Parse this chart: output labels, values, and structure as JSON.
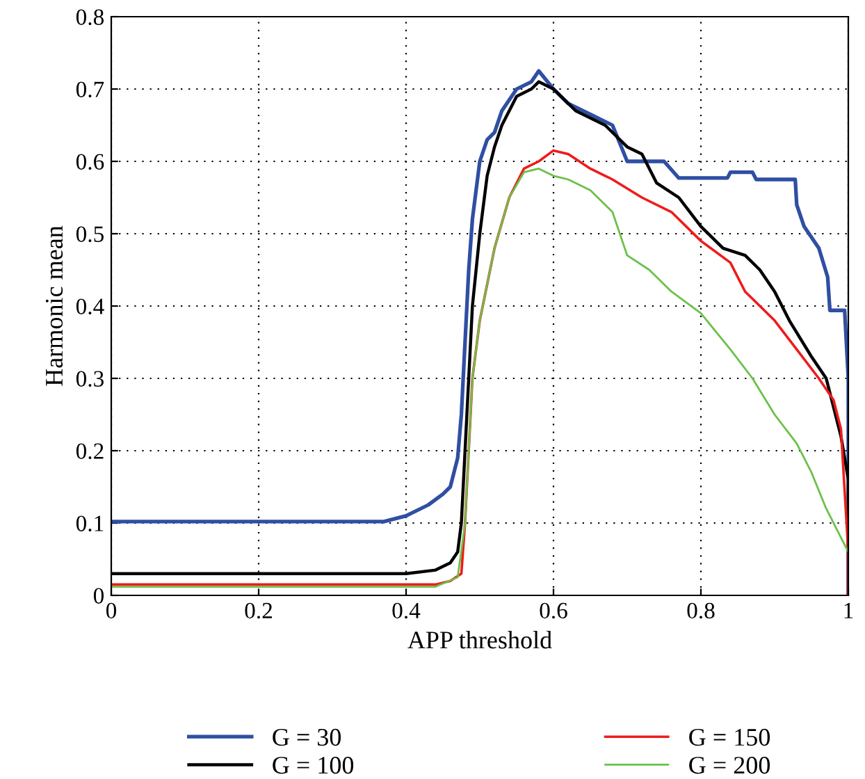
{
  "chart_data": {
    "type": "line",
    "xlabel": "APP threshold",
    "ylabel": "Harmonic mean",
    "xlim": [
      0,
      1
    ],
    "ylim": [
      0,
      0.8
    ],
    "xticks": [
      0,
      0.2,
      0.4,
      0.6,
      0.8,
      1
    ],
    "yticks": [
      0,
      0.1,
      0.2,
      0.3,
      0.4,
      0.5,
      0.6,
      0.7,
      0.8
    ],
    "grid": true,
    "legend": "bottom",
    "line_style": "solid",
    "series": [
      {
        "name": "G = 30",
        "color": "#2f4fa3",
        "x": [
          0,
          0.37,
          0.4,
          0.43,
          0.45,
          0.46,
          0.47,
          0.475,
          0.48,
          0.485,
          0.49,
          0.5,
          0.51,
          0.52,
          0.53,
          0.55,
          0.57,
          0.58,
          0.6,
          0.62,
          0.65,
          0.68,
          0.7,
          0.75,
          0.77,
          0.836,
          0.84,
          0.87,
          0.875,
          0.928,
          0.93,
          0.94,
          0.96,
          0.972,
          0.975,
          0.995,
          1.0,
          1.0
        ],
        "values": [
          0.102,
          0.102,
          0.11,
          0.125,
          0.14,
          0.15,
          0.19,
          0.25,
          0.35,
          0.45,
          0.52,
          0.6,
          0.63,
          0.64,
          0.67,
          0.7,
          0.71,
          0.725,
          0.7,
          0.68,
          0.665,
          0.65,
          0.6,
          0.6,
          0.577,
          0.577,
          0.585,
          0.585,
          0.575,
          0.575,
          0.54,
          0.51,
          0.48,
          0.44,
          0.394,
          0.394,
          0.3,
          0.0
        ]
      },
      {
        "name": "G = 100",
        "color": "#000000",
        "x": [
          0,
          0.4,
          0.44,
          0.46,
          0.47,
          0.475,
          0.48,
          0.485,
          0.49,
          0.5,
          0.51,
          0.52,
          0.53,
          0.55,
          0.57,
          0.58,
          0.6,
          0.63,
          0.67,
          0.7,
          0.72,
          0.74,
          0.77,
          0.8,
          0.83,
          0.86,
          0.88,
          0.9,
          0.92,
          0.95,
          0.97,
          0.99,
          1.0,
          1.0
        ],
        "values": [
          0.03,
          0.03,
          0.035,
          0.045,
          0.06,
          0.1,
          0.2,
          0.3,
          0.4,
          0.5,
          0.58,
          0.62,
          0.65,
          0.69,
          0.7,
          0.71,
          0.7,
          0.67,
          0.65,
          0.62,
          0.61,
          0.57,
          0.55,
          0.51,
          0.48,
          0.47,
          0.45,
          0.42,
          0.38,
          0.33,
          0.3,
          0.22,
          0.16,
          0.0
        ]
      },
      {
        "name": "G = 150",
        "color": "#ee1c1c",
        "x": [
          0,
          0.44,
          0.46,
          0.475,
          0.48,
          0.485,
          0.49,
          0.5,
          0.52,
          0.54,
          0.56,
          0.58,
          0.6,
          0.62,
          0.65,
          0.68,
          0.72,
          0.76,
          0.8,
          0.84,
          0.86,
          0.9,
          0.93,
          0.96,
          0.98,
          0.99,
          1.0,
          1.0
        ],
        "values": [
          0.015,
          0.015,
          0.02,
          0.03,
          0.1,
          0.2,
          0.3,
          0.38,
          0.48,
          0.55,
          0.59,
          0.6,
          0.615,
          0.61,
          0.59,
          0.575,
          0.55,
          0.53,
          0.49,
          0.46,
          0.42,
          0.38,
          0.34,
          0.3,
          0.27,
          0.23,
          0.06,
          0.0
        ]
      },
      {
        "name": "G = 200",
        "color": "#6cc04a",
        "x": [
          0,
          0.44,
          0.47,
          0.48,
          0.49,
          0.5,
          0.52,
          0.54,
          0.56,
          0.58,
          0.6,
          0.62,
          0.65,
          0.68,
          0.7,
          0.73,
          0.76,
          0.8,
          0.84,
          0.87,
          0.9,
          0.93,
          0.95,
          0.97,
          0.99,
          1.0
        ],
        "values": [
          0.012,
          0.012,
          0.025,
          0.1,
          0.3,
          0.38,
          0.48,
          0.55,
          0.585,
          0.59,
          0.58,
          0.575,
          0.56,
          0.53,
          0.47,
          0.45,
          0.42,
          0.39,
          0.34,
          0.3,
          0.25,
          0.21,
          0.17,
          0.12,
          0.08,
          0.06
        ]
      }
    ]
  }
}
